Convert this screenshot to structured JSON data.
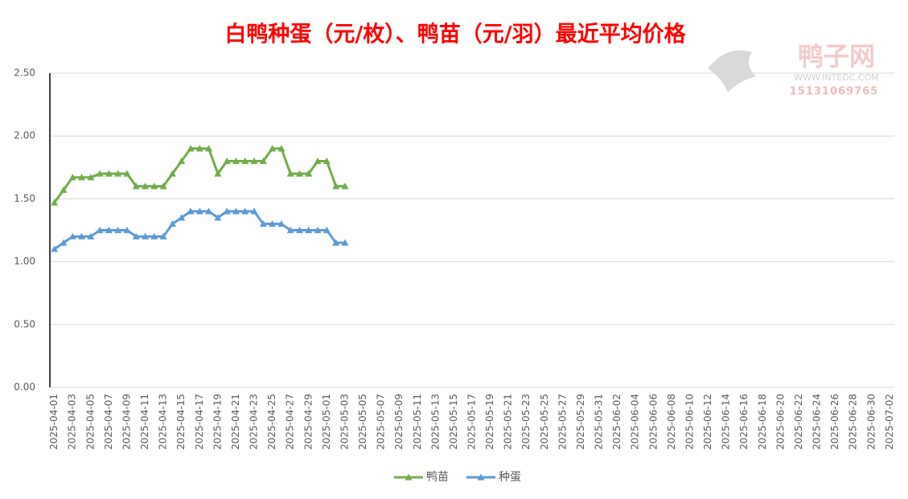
{
  "chart_data": {
    "type": "line",
    "title": "白鸭种蛋（元/枚）、鸭苗（元/羽）最近平均价格",
    "watermark": {
      "name": "鸭子网",
      "url": "WWW.INTEDC.COM",
      "phone": "15131069765"
    },
    "categories": [
      "2025-04-01",
      null,
      "2025-04-03",
      null,
      "2025-04-05",
      null,
      "2025-04-07",
      null,
      "2025-04-09",
      null,
      "2025-04-11",
      null,
      "2025-04-13",
      null,
      "2025-04-15",
      null,
      "2025-04-17",
      null,
      "2025-04-19",
      null,
      "2025-04-21",
      null,
      "2025-04-23",
      null,
      "2025-04-25",
      null,
      "2025-04-27",
      null,
      "2025-04-29",
      null,
      "2025-05-01",
      null,
      "2025-05-03",
      null,
      "2025-05-05",
      null,
      "2025-05-07",
      null,
      "2025-05-09",
      null,
      "2025-05-11",
      null,
      "2025-05-13",
      null,
      "2025-05-15",
      null,
      "2025-05-17",
      null,
      "2025-05-19",
      null,
      "2025-05-21",
      null,
      "2025-05-23",
      null,
      "2025-05-25",
      null,
      "2025-05-27",
      null,
      "2025-05-29",
      null,
      "2025-05-31",
      null,
      "2025-06-02",
      null,
      "2025-06-04",
      null,
      "2025-06-06",
      null,
      "2025-06-08",
      null,
      "2025-06-10",
      null,
      "2025-06-12",
      null,
      "2025-06-14",
      null,
      "2025-06-16",
      null,
      "2025-06-18",
      null,
      "2025-06-20",
      null,
      "2025-06-22",
      null,
      "2025-06-24",
      null,
      "2025-06-26",
      null,
      "2025-06-28",
      null,
      "2025-06-30",
      null,
      "2025-07-02"
    ],
    "series": [
      {
        "name": "鸭苗",
        "color": "#70ad47",
        "values": [
          1.47,
          1.57,
          1.67,
          1.67,
          1.67,
          1.7,
          1.7,
          1.7,
          1.7,
          1.6,
          1.6,
          1.6,
          1.6,
          1.7,
          1.8,
          1.9,
          1.9,
          1.9,
          1.7,
          1.8,
          1.8,
          1.8,
          1.8,
          1.8,
          1.9,
          1.9,
          1.7,
          1.7,
          1.7,
          1.8,
          1.8,
          1.6,
          1.6,
          null,
          null,
          null,
          null,
          null,
          null,
          null,
          null,
          null,
          null,
          null,
          null,
          null,
          null,
          null,
          null,
          null,
          null,
          null,
          null,
          null,
          null,
          null,
          null,
          null,
          null,
          null,
          null,
          null,
          null,
          null,
          null,
          null,
          null,
          null,
          null,
          null,
          null,
          null,
          null,
          null,
          null,
          null,
          null,
          null,
          null,
          null,
          null,
          null,
          null,
          null,
          null,
          null,
          null,
          null,
          null,
          null,
          null,
          null,
          null
        ]
      },
      {
        "name": "种蛋",
        "color": "#5b9bd5",
        "values": [
          1.1,
          1.15,
          1.2,
          1.2,
          1.2,
          1.25,
          1.25,
          1.25,
          1.25,
          1.2,
          1.2,
          1.2,
          1.2,
          1.3,
          1.35,
          1.4,
          1.4,
          1.4,
          1.35,
          1.4,
          1.4,
          1.4,
          1.4,
          1.3,
          1.3,
          1.3,
          1.25,
          1.25,
          1.25,
          1.25,
          1.25,
          1.15,
          1.15,
          null,
          null,
          null,
          null,
          null,
          null,
          null,
          null,
          null,
          null,
          null,
          null,
          null,
          null,
          null,
          null,
          null,
          null,
          null,
          null,
          null,
          null,
          null,
          null,
          null,
          null,
          null,
          null,
          null,
          null,
          null,
          null,
          null,
          null,
          null,
          null,
          null,
          null,
          null,
          null,
          null,
          null,
          null,
          null,
          null,
          null,
          null,
          null,
          null,
          null,
          null,
          null,
          null,
          null,
          null,
          null,
          null,
          null,
          null,
          null
        ]
      }
    ],
    "ylim": [
      0,
      2.5
    ],
    "yticks": [
      {
        "value": 0,
        "label": "0.00"
      },
      {
        "value": 0.5,
        "label": "0.50"
      },
      {
        "value": 1,
        "label": "1.00"
      },
      {
        "value": 1.5,
        "label": "1.50"
      },
      {
        "value": 2,
        "label": "2.00"
      },
      {
        "value": 2.5,
        "label": "2.50"
      }
    ],
    "grid": true,
    "legend": "bottom",
    "marker": "triangle"
  }
}
